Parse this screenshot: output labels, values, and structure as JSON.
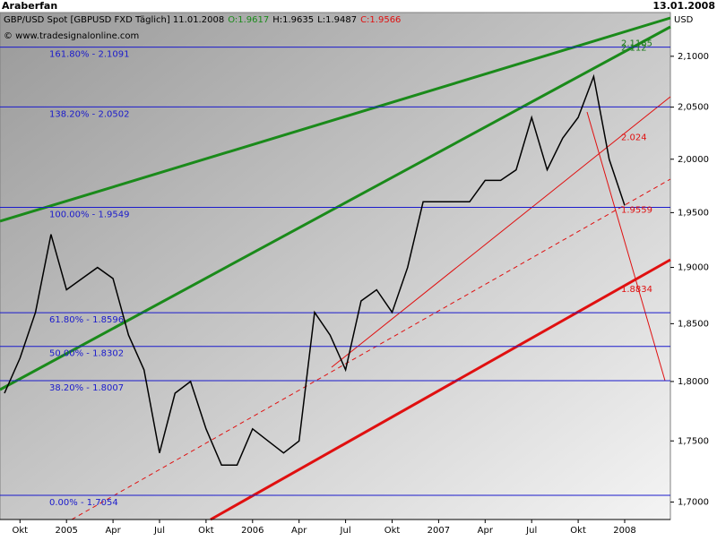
{
  "header": {
    "user": "Araberfan",
    "date": "13.01.2008"
  },
  "chart_data": {
    "type": "line",
    "title": "GBP/USD Spot [GBPUSD FXD  Täglich]  11.01.2008",
    "ohlc": [
      "O:1.9617",
      "H:1.9635",
      "L:1.9487",
      "C:1.9566"
    ],
    "source": "© www.tradesignalonline.com",
    "y_axis_label": "USD",
    "log_scale": true,
    "categories": [
      null,
      "Okt",
      null,
      null,
      "2005",
      null,
      null,
      "Apr",
      null,
      null,
      "Jul",
      null,
      null,
      "Okt",
      null,
      null,
      "2006",
      null,
      null,
      "Apr",
      null,
      null,
      "Jul",
      null,
      null,
      "Okt",
      null,
      null,
      "2007",
      null,
      null,
      "Apr",
      null,
      null,
      "Jul",
      null,
      null,
      "Okt",
      null,
      null,
      "2008"
    ],
    "series": [
      {
        "name": "GBPUSD",
        "color": "#000000",
        "values": [
          1.79,
          1.82,
          1.86,
          1.93,
          1.88,
          1.89,
          1.9,
          1.89,
          1.84,
          1.81,
          1.74,
          1.79,
          1.8,
          1.76,
          1.73,
          1.73,
          1.76,
          1.75,
          1.74,
          1.75,
          1.86,
          1.84,
          1.81,
          1.87,
          1.88,
          1.86,
          1.9,
          1.96,
          1.96,
          1.96,
          1.96,
          1.98,
          1.98,
          1.99,
          2.04,
          1.99,
          2.02,
          2.04,
          2.08,
          2.0,
          1.9566
        ]
      }
    ],
    "ylim": [
      1.686,
      2.144
    ],
    "yticks": [
      {
        "value": 1.7,
        "label": "1,7000"
      },
      {
        "value": 1.75,
        "label": "1,7500"
      },
      {
        "value": 1.8,
        "label": "1,8000"
      },
      {
        "value": 1.85,
        "label": "1,8500"
      },
      {
        "value": 1.9,
        "label": "1,9000"
      },
      {
        "value": 1.95,
        "label": "1,9500"
      },
      {
        "value": 2.0,
        "label": "2,0000"
      },
      {
        "value": 2.05,
        "label": "2,0500"
      },
      {
        "value": 2.1,
        "label": "2,1000"
      }
    ],
    "fib_levels": [
      {
        "value": 2.1091,
        "label": "161.80% - 2.1091"
      },
      {
        "value": 2.0502,
        "label": "138.20% - 2.0502"
      },
      {
        "value": 1.9549,
        "label": "100.00% - 1.9549"
      },
      {
        "value": 1.8596,
        "label": "61.80% - 1.8596"
      },
      {
        "value": 1.8302,
        "label": "50.00% - 1.8302"
      },
      {
        "value": 1.8007,
        "label": "38.20% - 1.8007"
      },
      {
        "value": 1.7054,
        "label": "0.00% - 1.7054"
      }
    ],
    "fib_color": "#1a1acc",
    "line_labels": [
      {
        "value": 2.1165,
        "label": "2.1165",
        "color": "#1a7a1a"
      },
      {
        "value": 2.112,
        "label": "2.112",
        "color": "#1a7a1a"
      },
      {
        "value": 2.024,
        "label": "2.024",
        "color": "#e01010"
      },
      {
        "value": 1.9559,
        "label": "1.9559",
        "color": "#e01010"
      },
      {
        "value": 1.8834,
        "label": "1.8834",
        "color": "#e01010"
      }
    ]
  }
}
